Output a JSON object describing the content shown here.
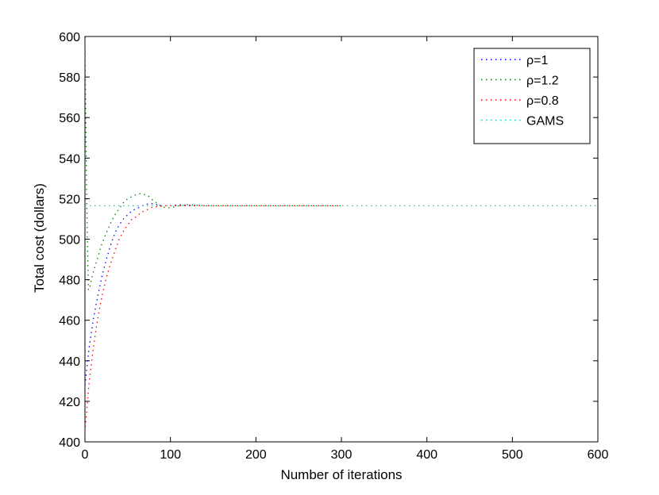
{
  "chart_data": {
    "type": "line",
    "title": "",
    "xlabel": "Number of iterations",
    "ylabel": "Total cost (dollars)",
    "xlim": [
      0,
      600
    ],
    "ylim": [
      400,
      600
    ],
    "xticks": [
      "0",
      "100",
      "200",
      "300",
      "400",
      "500",
      "600"
    ],
    "yticks": [
      "400",
      "420",
      "440",
      "460",
      "480",
      "500",
      "520",
      "540",
      "560",
      "580",
      "600"
    ],
    "grid": false,
    "legend_position": "top-right",
    "series": [
      {
        "name": "ρ=1",
        "color": "#0000ff",
        "x": [
          0,
          5,
          10,
          15,
          20,
          25,
          30,
          35,
          40,
          45,
          50,
          55,
          60,
          65,
          70,
          75,
          80,
          85,
          90,
          95,
          100,
          110,
          120,
          130,
          140,
          150,
          200,
          250,
          300
        ],
        "y": [
          428,
          447,
          461,
          472,
          482,
          490,
          497,
          503,
          507,
          510,
          512,
          514,
          515,
          516,
          517,
          517.5,
          517.5,
          517,
          516.5,
          516.5,
          516.5,
          517,
          516.8,
          516.7,
          516.5,
          516.5,
          516.5,
          516.5,
          516.5
        ]
      },
      {
        "name": "ρ=1.2",
        "color": "#008000",
        "x": [
          0,
          1,
          2,
          4,
          6,
          8,
          10,
          15,
          20,
          25,
          30,
          35,
          40,
          45,
          50,
          55,
          60,
          65,
          70,
          75,
          80,
          85,
          90,
          95,
          100,
          110,
          120,
          130,
          140,
          150,
          200,
          250,
          300
        ],
        "y": [
          600,
          560,
          520,
          475,
          477,
          481,
          484,
          491,
          498,
          503,
          508,
          512,
          515,
          518,
          520,
          521,
          522,
          522.5,
          522,
          521,
          519,
          517.5,
          516,
          515.5,
          515.5,
          516.5,
          517,
          516.8,
          516.5,
          516.5,
          516.5,
          516.5,
          516.5
        ]
      },
      {
        "name": "ρ=0.8",
        "color": "#ff0000",
        "x": [
          0,
          5,
          10,
          15,
          20,
          25,
          30,
          35,
          40,
          45,
          50,
          55,
          60,
          65,
          70,
          75,
          80,
          85,
          90,
          95,
          100,
          110,
          120,
          130,
          140,
          150,
          200,
          250,
          300
        ],
        "y": [
          405,
          430,
          447,
          461,
          472,
          481,
          488,
          494,
          500,
          504,
          507,
          510,
          511,
          513,
          514,
          515,
          516,
          516,
          516.3,
          516.5,
          516.5,
          516.5,
          516.5,
          516.5,
          516.5,
          516.5,
          516.5,
          516.5,
          516.5
        ]
      },
      {
        "name": "GAMS",
        "color": "#00cccc",
        "x": [
          0,
          600
        ],
        "y": [
          516.5,
          516.5
        ]
      }
    ]
  }
}
